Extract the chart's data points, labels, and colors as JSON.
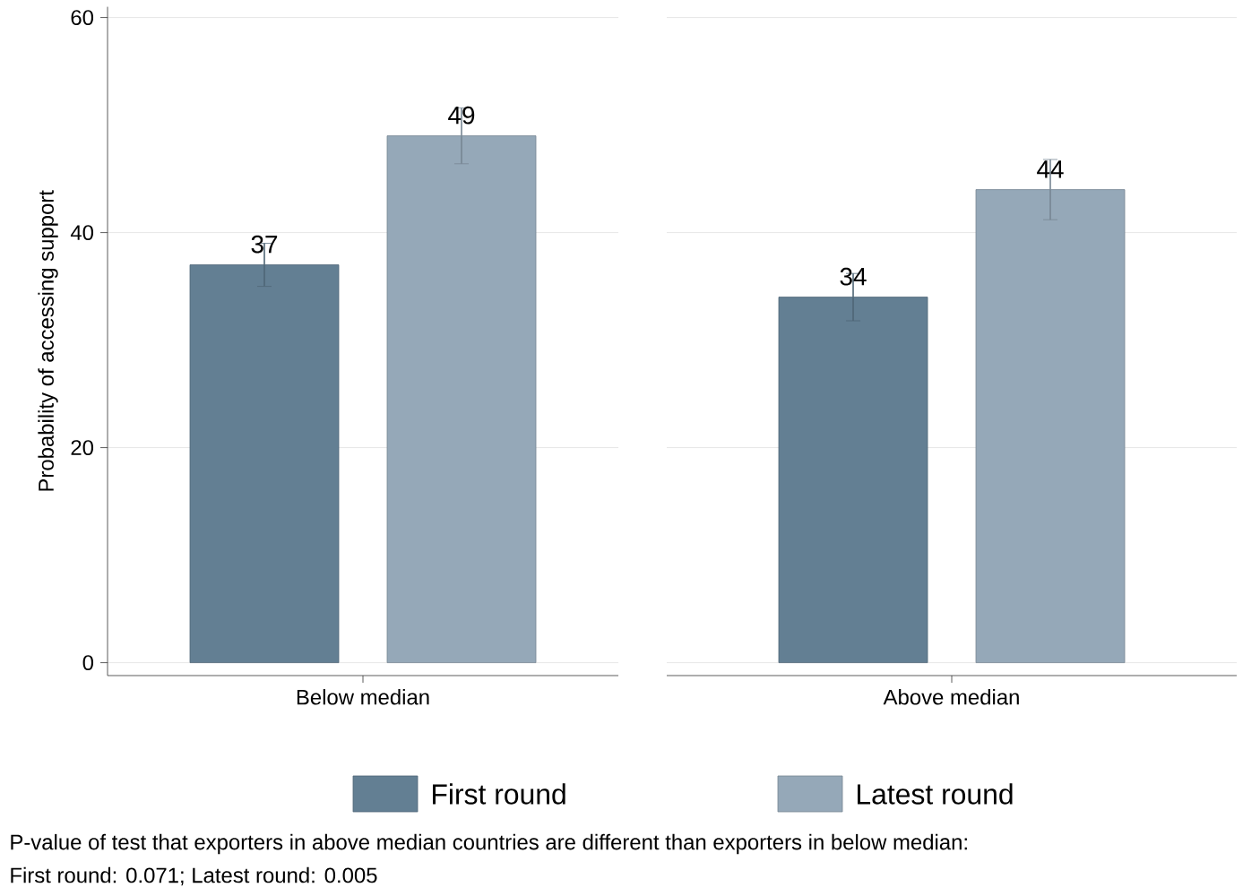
{
  "chart_data": {
    "type": "bar",
    "ylabel": "Probability of accessing support",
    "categories": [
      "Below median",
      "Above median"
    ],
    "ylim": [
      -1.2,
      61
    ],
    "yticks": [
      0,
      20,
      40,
      60
    ],
    "grid": "y",
    "legend": "bottom",
    "data_labels": true,
    "series": [
      {
        "name": "First round",
        "color": "#637f93",
        "values": [
          37,
          34
        ],
        "errors": [
          2,
          2.2
        ]
      },
      {
        "name": "Latest round",
        "color": "#95a8b8",
        "values": [
          49,
          44
        ],
        "errors": [
          2.6,
          2.8
        ]
      }
    ],
    "annotations": [
      "P-value of test that exporters in above median countries are different than exporters in below median:",
      "First round:     0.071; Latest round:     0.005"
    ]
  }
}
